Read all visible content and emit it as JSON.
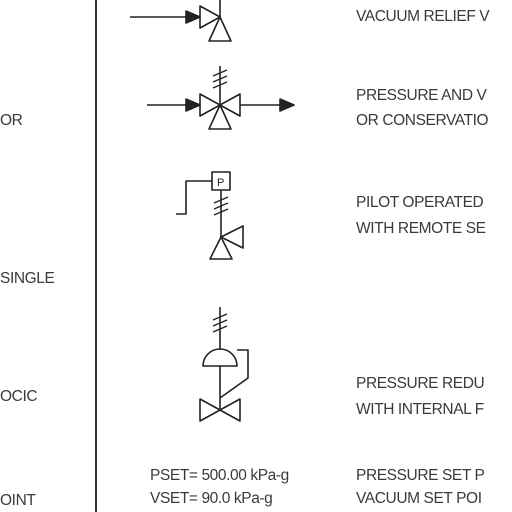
{
  "left_column": {
    "items": [
      "OR",
      "SINGLE",
      "OCIC",
      "OINT"
    ]
  },
  "symbols": [
    {
      "icon": "vacuum-relief-valve-icon",
      "lines": [
        "VACUUM RELIEF V"
      ]
    },
    {
      "icon": "pressure-vacuum-valve-icon",
      "lines": [
        "PRESSURE AND  V",
        "OR CONSERVATIO"
      ]
    },
    {
      "icon": "pilot-operated-valve-icon",
      "lines": [
        "PILOT OPERATED",
        "WITH REMOTE SE"
      ]
    },
    {
      "icon": "pressure-reducing-valve-icon",
      "lines": [
        "PRESSURE REDU",
        "WITH INTERNAL F"
      ]
    }
  ],
  "setpoints": {
    "pset": "PSET= 500.00 kPa-g",
    "vset": "VSET= 90.0 kPa-g",
    "desc1": "PRESSURE SET P",
    "desc2": "VACUUM SET POI"
  }
}
